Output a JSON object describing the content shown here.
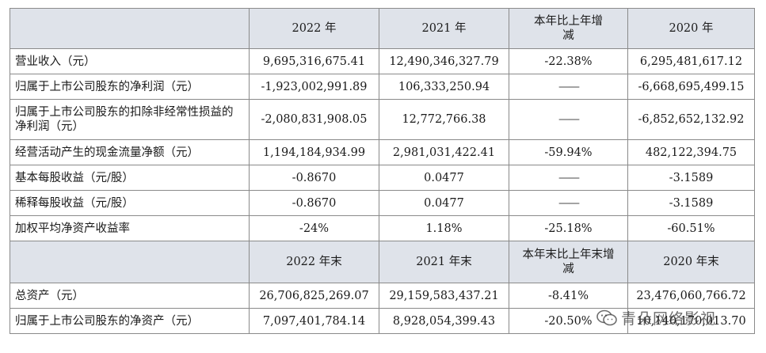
{
  "header1": [
    "",
    "2022 年",
    "2021 年",
    "本年比上年增减",
    "2020 年"
  ],
  "rows1": [
    {
      "label": "营业收入（元）",
      "v2022": "9,695,316,675.41",
      "v2021": "12,490,346,327.79",
      "change": "-22.38%",
      "v2020": "6,295,481,617.12"
    },
    {
      "label": "归属于上市公司股东的净利润（元）",
      "v2022": "-1,923,002,991.89",
      "v2021": "106,333,250.94",
      "change": "——",
      "v2020": "-6,668,695,499.15"
    },
    {
      "label": "归属于上市公司股东的扣除非经常性损益的净利润（元）",
      "v2022": "-2,080,831,908.05",
      "v2021": "12,772,766.38",
      "change": "——",
      "v2020": "-6,852,652,132.92"
    },
    {
      "label": "经营活动产生的现金流量净额（元）",
      "v2022": "1,194,184,934.99",
      "v2021": "2,981,031,422.41",
      "change": "-59.94%",
      "v2020": "482,122,394.75"
    },
    {
      "label": "基本每股收益（元/股）",
      "v2022": "-0.8670",
      "v2021": "0.0477",
      "change": "——",
      "v2020": "-3.1589"
    },
    {
      "label": "稀释每股收益（元/股）",
      "v2022": "-0.8670",
      "v2021": "0.0477",
      "change": "——",
      "v2020": "-3.1589"
    },
    {
      "label": "加权平均净资产收益率",
      "v2022": "-24%",
      "v2021": "1.18%",
      "change": "-25.18%",
      "v2020": "-60.51%"
    }
  ],
  "header2": [
    "",
    "2022 年末",
    "2021 年末",
    "本年末比上年末增减",
    "2020 年末"
  ],
  "rows2": [
    {
      "label": "总资产（元）",
      "v2022": "26,706,825,269.07",
      "v2021": "29,159,583,437.21",
      "change": "-8.41%",
      "v2020": "23,476,060,766.72"
    },
    {
      "label": "归属于上市公司股东的净资产（元）",
      "v2022": "7,097,401,784.14",
      "v2021": "8,928,054,399.43",
      "change": "-20.50%",
      "v2020": "10,140,170,013.70"
    }
  ],
  "watermark": "青朵网络影视"
}
